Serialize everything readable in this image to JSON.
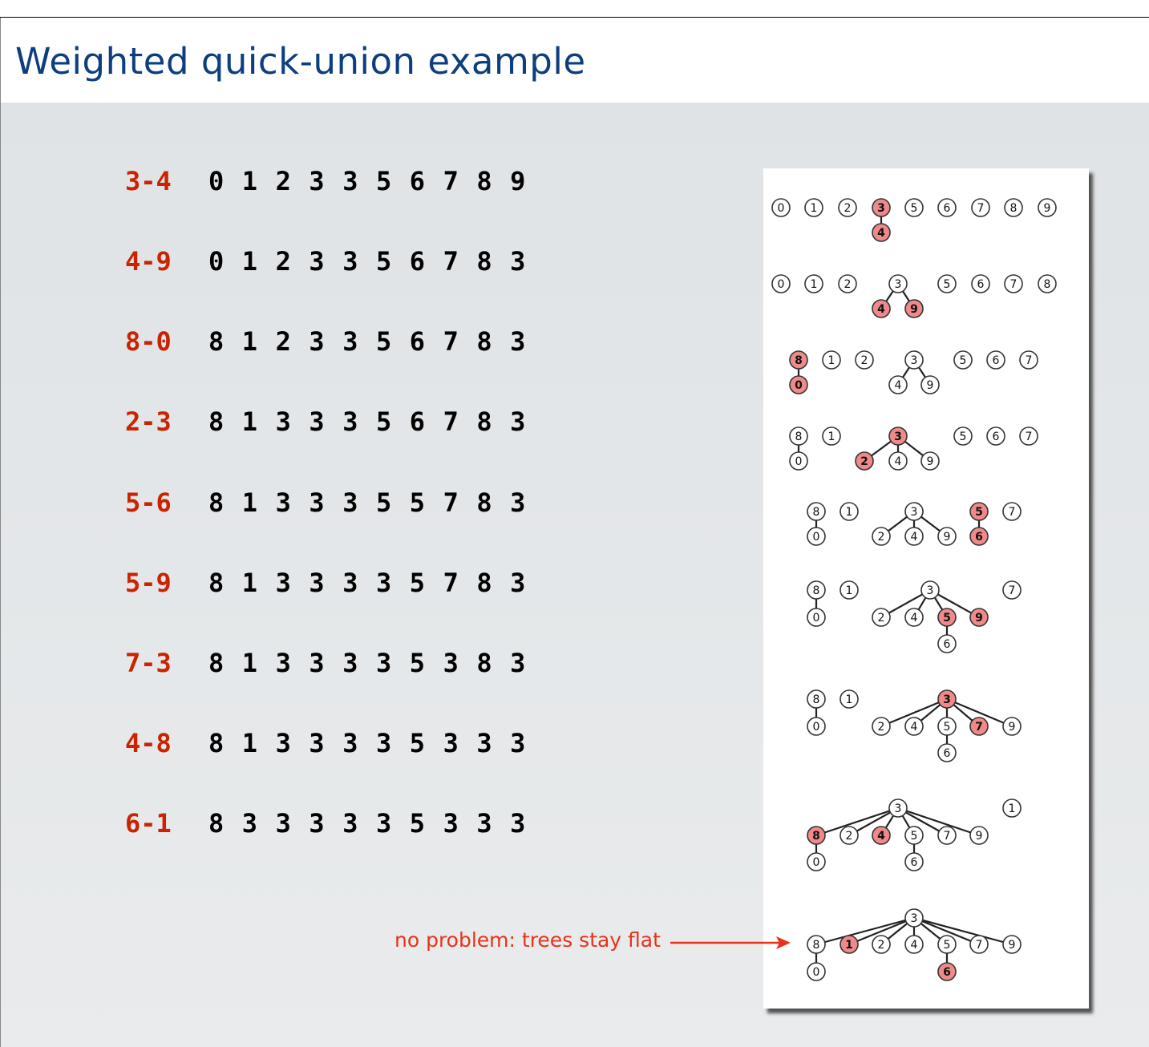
{
  "title": "Weighted quick-union example",
  "operations": [
    {
      "op": "3-4",
      "ids": [
        "0",
        "1",
        "2",
        "3",
        "3",
        "5",
        "6",
        "7",
        "8",
        "9"
      ]
    },
    {
      "op": "4-9",
      "ids": [
        "0",
        "1",
        "2",
        "3",
        "3",
        "5",
        "6",
        "7",
        "8",
        "3"
      ]
    },
    {
      "op": "8-0",
      "ids": [
        "8",
        "1",
        "2",
        "3",
        "3",
        "5",
        "6",
        "7",
        "8",
        "3"
      ]
    },
    {
      "op": "2-3",
      "ids": [
        "8",
        "1",
        "3",
        "3",
        "3",
        "5",
        "6",
        "7",
        "8",
        "3"
      ]
    },
    {
      "op": "5-6",
      "ids": [
        "8",
        "1",
        "3",
        "3",
        "3",
        "5",
        "5",
        "7",
        "8",
        "3"
      ]
    },
    {
      "op": "5-9",
      "ids": [
        "8",
        "1",
        "3",
        "3",
        "3",
        "3",
        "5",
        "7",
        "8",
        "3"
      ]
    },
    {
      "op": "7-3",
      "ids": [
        "8",
        "1",
        "3",
        "3",
        "3",
        "3",
        "5",
        "3",
        "8",
        "3"
      ]
    },
    {
      "op": "4-8",
      "ids": [
        "8",
        "1",
        "3",
        "3",
        "3",
        "3",
        "5",
        "3",
        "3",
        "3"
      ]
    },
    {
      "op": "6-1",
      "ids": [
        "8",
        "3",
        "3",
        "3",
        "3",
        "3",
        "5",
        "3",
        "3",
        "3"
      ]
    }
  ],
  "annotation": "no problem: trees stay flat",
  "colors": {
    "title": "#0d3f80",
    "op": "#cc2200",
    "annotation": "#e8321a",
    "highlight_fill": "#f08a8a"
  }
}
